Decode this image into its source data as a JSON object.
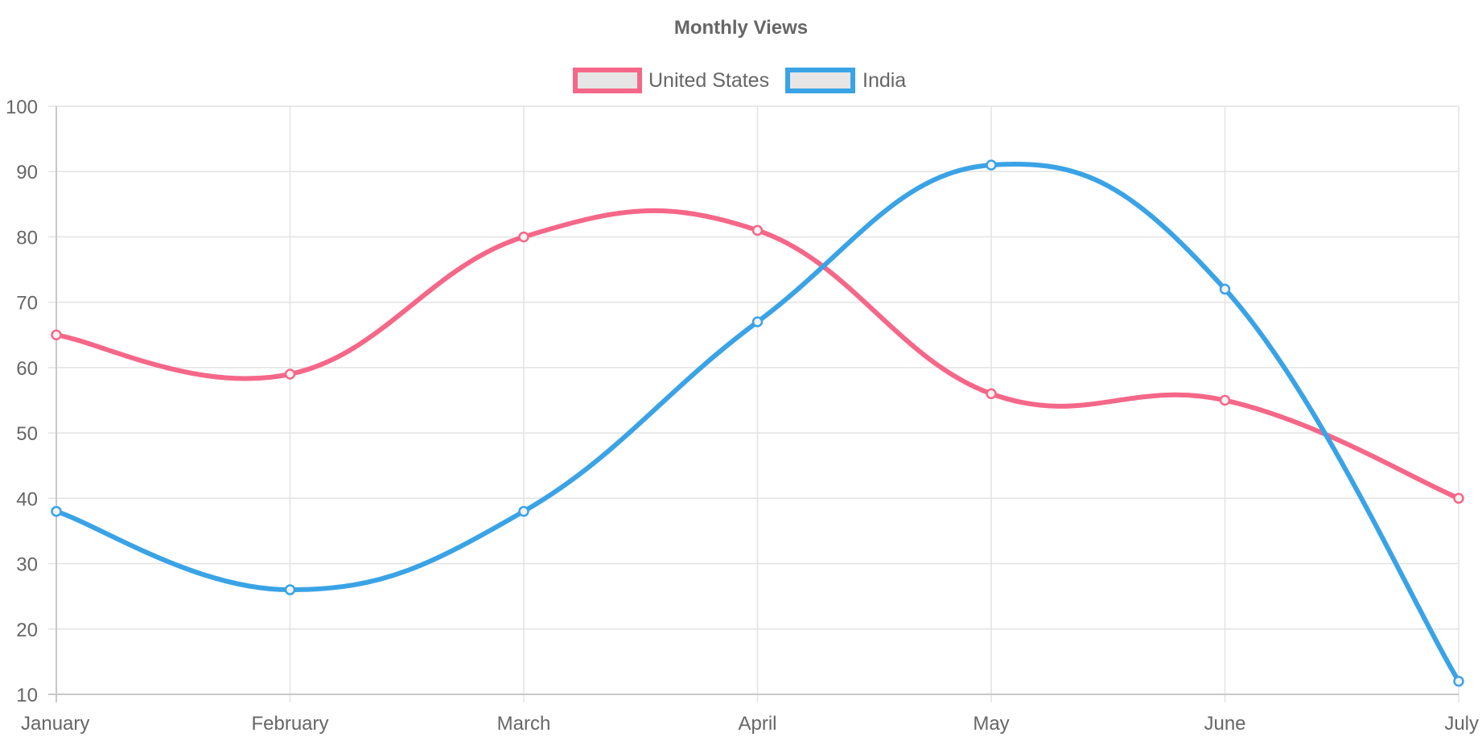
{
  "chart_data": {
    "type": "line",
    "title": "Monthly Views",
    "categories": [
      "January",
      "February",
      "March",
      "April",
      "May",
      "June",
      "July"
    ],
    "series": [
      {
        "name": "United States",
        "color": "#f56788",
        "values": [
          65,
          59,
          80,
          81,
          56,
          55,
          40
        ]
      },
      {
        "name": "India",
        "color": "#3aa3e6",
        "values": [
          38,
          26,
          38,
          67,
          91,
          72,
          12
        ]
      }
    ],
    "ylim": [
      10,
      100
    ],
    "yticks": [
      10,
      20,
      30,
      40,
      50,
      60,
      70,
      80,
      90,
      100
    ],
    "grid": true,
    "legend_position": "top"
  }
}
